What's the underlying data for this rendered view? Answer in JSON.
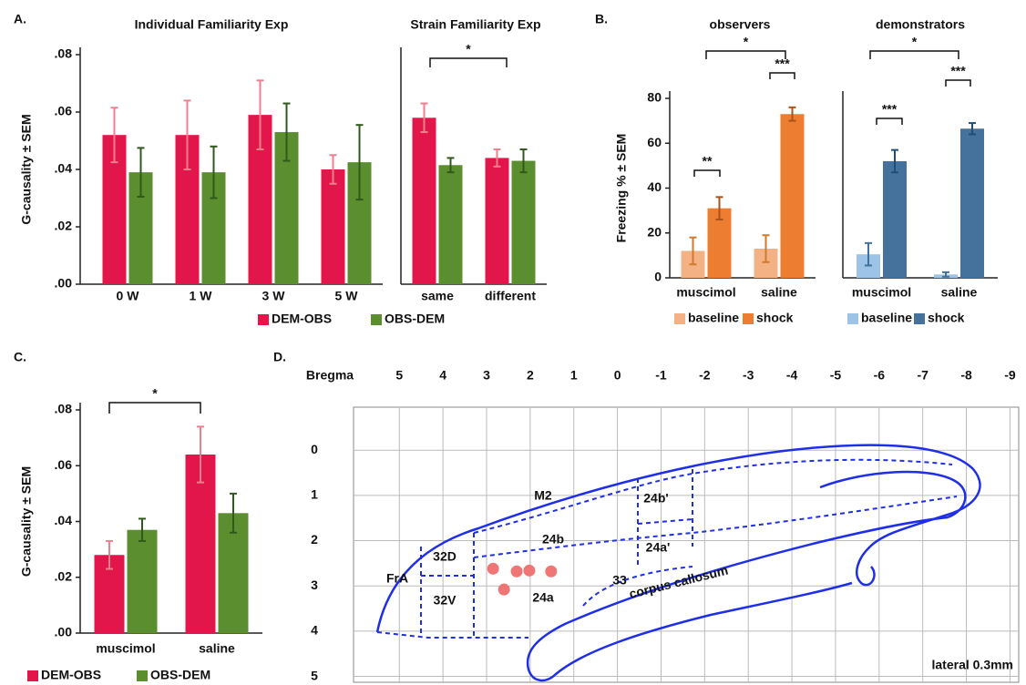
{
  "chart_data": [
    {
      "type": "bar",
      "panel": "A.",
      "title": "Individual Familiarity Exp",
      "ylabel": "G-causality ± SEM",
      "categories": [
        "0 W",
        "1 W",
        "3 W",
        "5 W"
      ],
      "series": [
        {
          "name": "DEM-OBS",
          "color": "#e2164a",
          "error_color": "#f07f8e",
          "values": [
            0.052,
            0.052,
            0.059,
            0.04
          ],
          "errors": [
            0.0095,
            0.012,
            0.012,
            0.005
          ]
        },
        {
          "name": "OBS-DEM",
          "color": "#5b8e2e",
          "error_color": "#2f5a1c",
          "values": [
            0.039,
            0.039,
            0.053,
            0.0425
          ],
          "errors": [
            0.0085,
            0.009,
            0.01,
            0.013
          ]
        }
      ],
      "ylim": [
        0,
        0.08
      ],
      "yticks": [
        {
          "value": 0,
          "label": ".00"
        },
        {
          "value": 0.02,
          "label": ".02"
        },
        {
          "value": 0.04,
          "label": ".04"
        },
        {
          "value": 0.06,
          "label": ".06"
        },
        {
          "value": 0.08,
          "label": ".08"
        }
      ]
    },
    {
      "type": "bar",
      "title": "Strain Familiarity Exp",
      "categories": [
        "same",
        "different"
      ],
      "series": [
        {
          "color": "#e2164a",
          "error_color": "#f07f8e",
          "values": [
            0.058,
            0.044
          ],
          "errors": [
            0.005,
            0.003
          ]
        },
        {
          "color": "#5b8e2e",
          "error_color": "#2f5a1c",
          "values": [
            0.0415,
            0.043
          ],
          "errors": [
            0.0025,
            0.004
          ]
        }
      ],
      "ylim": [
        0,
        0.08
      ],
      "annotations": [
        "*"
      ]
    },
    {
      "type": "bar",
      "panel": "B.",
      "title": "observers",
      "ylabel": "Freezing % ± SEM",
      "categories": [
        "muscimol",
        "saline"
      ],
      "series": [
        {
          "name": "baseline",
          "color": "#f4b183",
          "error_color": "#d07a30",
          "values": [
            12,
            13
          ],
          "errors": [
            6,
            6
          ]
        },
        {
          "name": "shock",
          "color": "#ed7d31",
          "error_color": "#a9521a",
          "values": [
            31,
            73
          ],
          "errors": [
            5,
            3
          ]
        }
      ],
      "ylim": [
        0,
        80
      ],
      "yticks": [
        0,
        20,
        40,
        60,
        80
      ],
      "annotations": [
        "*",
        "**",
        "***"
      ]
    },
    {
      "type": "bar",
      "title": "demonstrators",
      "categories": [
        "muscimol",
        "saline"
      ],
      "series": [
        {
          "name": "baseline",
          "color": "#9dc3e6",
          "error_color": "#41719c",
          "values": [
            10.5,
            1.5
          ],
          "errors": [
            5,
            1
          ]
        },
        {
          "name": "shock",
          "color": "#44729d",
          "error_color": "#1f4e79",
          "values": [
            52,
            66.5
          ],
          "errors": [
            5,
            2.5
          ]
        }
      ],
      "ylim": [
        0,
        80
      ],
      "annotations": [
        "*",
        "***",
        "***"
      ]
    },
    {
      "type": "bar",
      "panel": "C.",
      "ylabel": "G-causality ± SEM",
      "categories": [
        "muscimol",
        "saline"
      ],
      "series": [
        {
          "name": "DEM-OBS",
          "color": "#e2164a",
          "error_color": "#f07f8e",
          "values": [
            0.028,
            0.064
          ],
          "errors": [
            0.005,
            0.01
          ]
        },
        {
          "name": "OBS-DEM",
          "color": "#5b8e2e",
          "error_color": "#2f5a1c",
          "values": [
            0.037,
            0.043
          ],
          "errors": [
            0.004,
            0.007
          ]
        }
      ],
      "ylim": [
        0,
        0.08
      ],
      "yticks": [
        {
          "value": 0,
          "label": ".00"
        },
        {
          "value": 0.02,
          "label": ".02"
        },
        {
          "value": 0.04,
          "label": ".04"
        },
        {
          "value": 0.06,
          "label": ".06"
        },
        {
          "value": 0.08,
          "label": ".08"
        }
      ],
      "annotations": [
        "*"
      ]
    },
    {
      "type": "atlas",
      "panel": "D.",
      "xlabel": "Bregma",
      "xlim": [
        6.05,
        -9.2
      ],
      "xticks": [
        5,
        4,
        3,
        2,
        1,
        0,
        -1,
        -2,
        -3,
        -4,
        -5,
        -6,
        -7,
        -8,
        -9
      ],
      "ylim": [
        5.15,
        -0.95
      ],
      "yticks": [
        0,
        1,
        2,
        3,
        4,
        5
      ],
      "grid": true,
      "regions": [
        "M2",
        "24b'",
        "24b",
        "24a'",
        "32D",
        "FrA",
        "33",
        "corpus callosum",
        "32V",
        "24a"
      ],
      "points": {
        "color": "#f07575",
        "x": [
          2.85,
          2.31,
          2.02,
          1.52,
          2.6
        ],
        "y": [
          2.62,
          2.68,
          2.66,
          2.68,
          3.08
        ]
      },
      "note": "lateral 0.3mm"
    }
  ]
}
